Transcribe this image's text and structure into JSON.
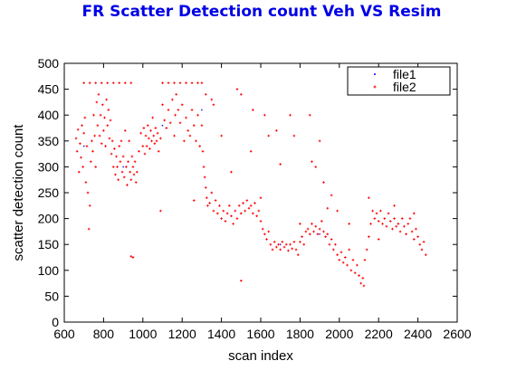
{
  "chart_data": {
    "type": "scatter",
    "title": "FR Scatter Detection count Veh VS Resim",
    "xlabel": "scan index",
    "ylabel": "scatter detection count",
    "xlim": [
      600,
      2600
    ],
    "ylim": [
      0,
      500
    ],
    "xticks": [
      600,
      800,
      1000,
      1200,
      1400,
      1600,
      1800,
      2000,
      2200,
      2400,
      2600
    ],
    "yticks": [
      0,
      50,
      100,
      150,
      200,
      250,
      300,
      350,
      400,
      450,
      500
    ],
    "grid": false,
    "legend_position": "top-right",
    "series": [
      {
        "name": "file1",
        "color": "#0000ff",
        "marker": "dot",
        "points": [
          [
            700,
            340
          ],
          [
            900,
            300
          ],
          [
            1100,
            380
          ],
          [
            1300,
            410
          ],
          [
            1500,
            210
          ],
          [
            1700,
            150
          ],
          [
            1900,
            170
          ],
          [
            2100,
            90
          ],
          [
            2300,
            190
          ],
          [
            2420,
            140
          ]
        ]
      },
      {
        "name": "file2",
        "color": "#ff0000",
        "marker": "plus",
        "points": [
          [
            660,
            355
          ],
          [
            665,
            330
          ],
          [
            670,
            372
          ],
          [
            675,
            290
          ],
          [
            680,
            345
          ],
          [
            685,
            318
          ],
          [
            690,
            380
          ],
          [
            695,
            300
          ],
          [
            700,
            365
          ],
          [
            705,
            395
          ],
          [
            710,
            270
          ],
          [
            715,
            340
          ],
          [
            720,
            250
          ],
          [
            725,
            180
          ],
          [
            730,
            225
          ],
          [
            735,
            310
          ],
          [
            740,
            350
          ],
          [
            745,
            330
          ],
          [
            750,
            400
          ],
          [
            755,
            360
          ],
          [
            760,
            300
          ],
          [
            765,
            425
          ],
          [
            770,
            380
          ],
          [
            775,
            440
          ],
          [
            780,
            360
          ],
          [
            785,
            400
          ],
          [
            790,
            345
          ],
          [
            795,
            420
          ],
          [
            800,
            370
          ],
          [
            805,
            395
          ],
          [
            810,
            340
          ],
          [
            815,
            430
          ],
          [
            820,
            380
          ],
          [
            825,
            410
          ],
          [
            830,
            355
          ],
          [
            835,
            390
          ],
          [
            840,
            325
          ],
          [
            845,
            350
          ],
          [
            850,
            300
          ],
          [
            855,
            335
          ],
          [
            860,
            285
          ],
          [
            865,
            320
          ],
          [
            870,
            300
          ],
          [
            875,
            275
          ],
          [
            880,
            340
          ],
          [
            885,
            310
          ],
          [
            890,
            350
          ],
          [
            895,
            290
          ],
          [
            900,
            320
          ],
          [
            905,
            280
          ],
          [
            910,
            370
          ],
          [
            915,
            300
          ],
          [
            920,
            265
          ],
          [
            925,
            310
          ],
          [
            930,
            350
          ],
          [
            935,
            290
          ],
          [
            940,
            275
          ],
          [
            945,
            320
          ],
          [
            950,
            300
          ],
          [
            955,
            285
          ],
          [
            960,
            310
          ],
          [
            965,
            270
          ],
          [
            970,
            290
          ],
          [
            980,
            330
          ],
          [
            990,
            365
          ],
          [
            1000,
            340
          ],
          [
            1005,
            375
          ],
          [
            1010,
            325
          ],
          [
            1015,
            360
          ],
          [
            1020,
            340
          ],
          [
            1025,
            380
          ],
          [
            1030,
            355
          ],
          [
            1035,
            335
          ],
          [
            1040,
            370
          ],
          [
            1045,
            350
          ],
          [
            1050,
            395
          ],
          [
            1055,
            360
          ],
          [
            1060,
            345
          ],
          [
            1065,
            375
          ],
          [
            1070,
            350
          ],
          [
            1075,
            365
          ],
          [
            1080,
            330
          ],
          [
            1090,
            355
          ],
          [
            1100,
            420
          ],
          [
            1110,
            390
          ],
          [
            1120,
            375
          ],
          [
            1130,
            410
          ],
          [
            1140,
            385
          ],
          [
            1150,
            430
          ],
          [
            1160,
            360
          ],
          [
            1165,
            400
          ],
          [
            1170,
            440
          ],
          [
            1180,
            410
          ],
          [
            1190,
            385
          ],
          [
            1200,
            420
          ],
          [
            1210,
            350
          ],
          [
            1220,
            395
          ],
          [
            1230,
            370
          ],
          [
            1240,
            360
          ],
          [
            1250,
            410
          ],
          [
            1260,
            380
          ],
          [
            1270,
            350
          ],
          [
            1280,
            400
          ],
          [
            1290,
            340
          ],
          [
            1300,
            380
          ],
          [
            1305,
            330
          ],
          [
            1310,
            300
          ],
          [
            1315,
            280
          ],
          [
            1320,
            260
          ],
          [
            1325,
            240
          ],
          [
            1330,
            225
          ],
          [
            1340,
            230
          ],
          [
            1350,
            250
          ],
          [
            1360,
            215
          ],
          [
            1370,
            235
          ],
          [
            1380,
            210
          ],
          [
            1390,
            225
          ],
          [
            1400,
            200
          ],
          [
            1410,
            215
          ],
          [
            1420,
            195
          ],
          [
            1430,
            210
          ],
          [
            1440,
            225
          ],
          [
            1450,
            205
          ],
          [
            1460,
            190
          ],
          [
            1470,
            215
          ],
          [
            1480,
            200
          ],
          [
            1490,
            225
          ],
          [
            1500,
            210
          ],
          [
            1510,
            230
          ],
          [
            1520,
            215
          ],
          [
            1530,
            235
          ],
          [
            1540,
            220
          ],
          [
            1550,
            225
          ],
          [
            1560,
            210
          ],
          [
            1570,
            230
          ],
          [
            1580,
            205
          ],
          [
            1590,
            215
          ],
          [
            1600,
            195
          ],
          [
            1610,
            180
          ],
          [
            1620,
            170
          ],
          [
            1630,
            160
          ],
          [
            1640,
            175
          ],
          [
            1650,
            150
          ],
          [
            1660,
            140
          ],
          [
            1670,
            155
          ],
          [
            1680,
            145
          ],
          [
            1690,
            150
          ],
          [
            1700,
            140
          ],
          [
            1710,
            155
          ],
          [
            1720,
            145
          ],
          [
            1730,
            150
          ],
          [
            1740,
            138
          ],
          [
            1750,
            150
          ],
          [
            1760,
            142
          ],
          [
            1770,
            155
          ],
          [
            1780,
            140
          ],
          [
            1790,
            130
          ],
          [
            1800,
            155
          ],
          [
            1810,
            165
          ],
          [
            1820,
            150
          ],
          [
            1830,
            175
          ],
          [
            1840,
            180
          ],
          [
            1850,
            170
          ],
          [
            1860,
            190
          ],
          [
            1870,
            175
          ],
          [
            1880,
            185
          ],
          [
            1890,
            170
          ],
          [
            1900,
            180
          ],
          [
            1910,
            195
          ],
          [
            1920,
            175
          ],
          [
            1930,
            165
          ],
          [
            1940,
            170
          ],
          [
            1950,
            150
          ],
          [
            1960,
            160
          ],
          [
            1970,
            140
          ],
          [
            1980,
            150
          ],
          [
            1990,
            130
          ],
          [
            2000,
            120
          ],
          [
            2010,
            135
          ],
          [
            2020,
            115
          ],
          [
            2030,
            125
          ],
          [
            2040,
            110
          ],
          [
            2050,
            140
          ],
          [
            2060,
            100
          ],
          [
            2070,
            120
          ],
          [
            2080,
            95
          ],
          [
            2090,
            110
          ],
          [
            2100,
            90
          ],
          [
            2110,
            75
          ],
          [
            2120,
            85
          ],
          [
            2125,
            70
          ],
          [
            2130,
            120
          ],
          [
            2140,
            140
          ],
          [
            2150,
            165
          ],
          [
            2160,
            190
          ],
          [
            2170,
            215
          ],
          [
            2180,
            200
          ],
          [
            2190,
            210
          ],
          [
            2200,
            195
          ],
          [
            2210,
            215
          ],
          [
            2220,
            190
          ],
          [
            2230,
            200
          ],
          [
            2240,
            185
          ],
          [
            2250,
            210
          ],
          [
            2260,
            195
          ],
          [
            2270,
            180
          ],
          [
            2280,
            200
          ],
          [
            2290,
            185
          ],
          [
            2300,
            190
          ],
          [
            2310,
            175
          ],
          [
            2320,
            200
          ],
          [
            2330,
            185
          ],
          [
            2340,
            170
          ],
          [
            2350,
            190
          ],
          [
            2360,
            200
          ],
          [
            2370,
            175
          ],
          [
            2380,
            160
          ],
          [
            2390,
            180
          ],
          [
            2400,
            165
          ],
          [
            2410,
            150
          ],
          [
            2420,
            140
          ],
          [
            2430,
            155
          ],
          [
            2440,
            130
          ],
          [
            700,
            462
          ],
          [
            730,
            462
          ],
          [
            760,
            462
          ],
          [
            790,
            462
          ],
          [
            820,
            462
          ],
          [
            850,
            462
          ],
          [
            880,
            462
          ],
          [
            910,
            462
          ],
          [
            940,
            462
          ],
          [
            1100,
            462
          ],
          [
            1130,
            462
          ],
          [
            1160,
            462
          ],
          [
            1190,
            462
          ],
          [
            1220,
            462
          ],
          [
            1250,
            462
          ],
          [
            1280,
            462
          ],
          [
            1300,
            462
          ],
          [
            940,
            127
          ],
          [
            950,
            125
          ],
          [
            1090,
            215
          ],
          [
            1260,
            235
          ],
          [
            1320,
            440
          ],
          [
            1350,
            430
          ],
          [
            1360,
            420
          ],
          [
            1400,
            360
          ],
          [
            1450,
            290
          ],
          [
            1480,
            450
          ],
          [
            1500,
            440
          ],
          [
            1550,
            330
          ],
          [
            1560,
            410
          ],
          [
            1600,
            240
          ],
          [
            1620,
            400
          ],
          [
            1640,
            360
          ],
          [
            1680,
            370
          ],
          [
            1700,
            305
          ],
          [
            1750,
            400
          ],
          [
            1770,
            360
          ],
          [
            1800,
            190
          ],
          [
            1850,
            400
          ],
          [
            1860,
            310
          ],
          [
            1880,
            300
          ],
          [
            1900,
            350
          ],
          [
            1920,
            270
          ],
          [
            1940,
            220
          ],
          [
            1960,
            245
          ],
          [
            1990,
            215
          ],
          [
            2050,
            190
          ],
          [
            2150,
            240
          ],
          [
            2200,
            160
          ],
          [
            2280,
            225
          ],
          [
            2380,
            210
          ],
          [
            1500,
            80
          ]
        ]
      }
    ]
  }
}
